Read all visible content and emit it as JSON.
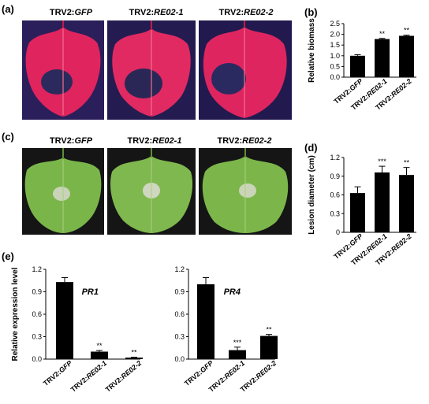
{
  "panels": {
    "a": {
      "label": "(a)",
      "titles": [
        {
          "prefix": "TRV2:",
          "gene": "GFP"
        },
        {
          "prefix": "TRV2:",
          "gene": "RE02-1"
        },
        {
          "prefix": "TRV2:",
          "gene": "RE02-2"
        }
      ]
    },
    "b": {
      "label": "(b)"
    },
    "c": {
      "label": "(c)",
      "titles": [
        {
          "prefix": "TRV2:",
          "gene": "GFP"
        },
        {
          "prefix": "TRV2:",
          "gene": "RE02-1"
        },
        {
          "prefix": "TRV2:",
          "gene": "RE02-2"
        }
      ]
    },
    "d": {
      "label": "(d)"
    },
    "e": {
      "label": "(e)"
    }
  },
  "colors": {
    "bar": "#000000",
    "leaf_uv_bg": "#2a1f5a",
    "leaf_uv": "#e0245e",
    "leaf_green_bg": "#151515",
    "leaf_green": "#7ab54a"
  },
  "chart_data": [
    {
      "id": "b",
      "type": "bar",
      "categories": [
        "TRV2:GFP",
        "TRV2:RE02-1",
        "TRV2:RE02-2"
      ],
      "values": [
        1.0,
        1.78,
        1.93
      ],
      "errors": [
        0.05,
        0.03,
        0.03
      ],
      "significance": [
        "",
        "**",
        "**"
      ],
      "ylabel": "Relative biomass",
      "ylim": [
        0,
        2.5
      ],
      "yticks": [
        "0.0",
        "0.5",
        "1.0",
        "1.5",
        "2.0",
        "2.5"
      ]
    },
    {
      "id": "d",
      "type": "bar",
      "categories": [
        "TRV2:GFP",
        "TRV2:RE02-1",
        "TRV2:RE02-2"
      ],
      "values": [
        0.63,
        0.96,
        0.92
      ],
      "errors": [
        0.1,
        0.1,
        0.12
      ],
      "significance": [
        "",
        "***",
        "**"
      ],
      "ylabel": "Lesion diameter (cm)",
      "ylim": [
        0,
        1.2
      ],
      "yticks": [
        "0",
        "0.3",
        "0.6",
        "0.9",
        "1.2"
      ]
    },
    {
      "id": "e1",
      "type": "bar",
      "categories": [
        "TRV2:GFP",
        "TRV2:RE02-1",
        "TRV2:RE02-2"
      ],
      "values": [
        1.03,
        0.1,
        0.02
      ],
      "errors": [
        0.06,
        0.015,
        0.005
      ],
      "significance": [
        "",
        "**",
        "**"
      ],
      "annotation": "PR1",
      "ylabel": "Relative expression level",
      "ylim": [
        0,
        1.2
      ],
      "yticks": [
        "0.0",
        "0.3",
        "0.6",
        "0.9",
        "1.2"
      ]
    },
    {
      "id": "e2",
      "type": "bar",
      "categories": [
        "TRV2:GFP",
        "TRV2:RE02-1",
        "TRV2:RE02-2"
      ],
      "values": [
        1.0,
        0.12,
        0.31
      ],
      "errors": [
        0.09,
        0.04,
        0.02
      ],
      "significance": [
        "",
        "***",
        "**"
      ],
      "annotation": "PR4",
      "ylabel": "",
      "ylim": [
        0,
        1.2
      ],
      "yticks": [
        "0.0",
        "0.3",
        "0.6",
        "0.9",
        "1.2"
      ]
    }
  ]
}
